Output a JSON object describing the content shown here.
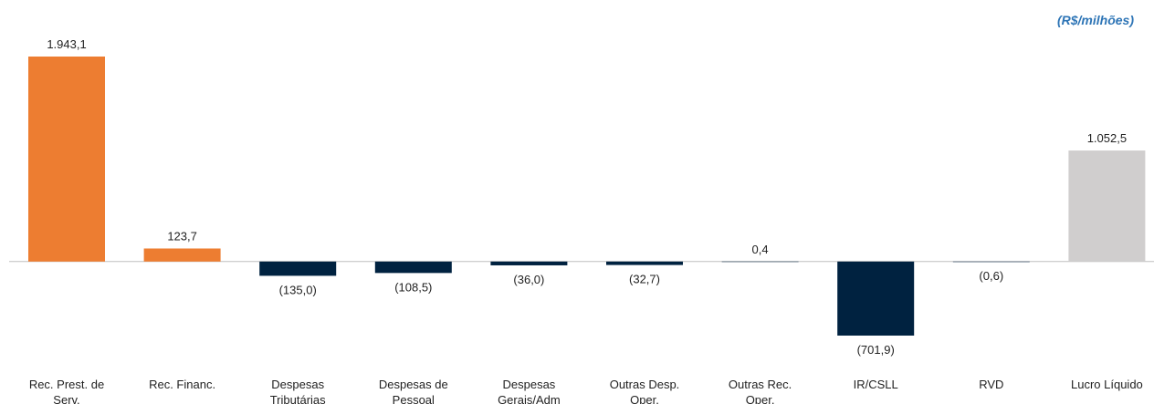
{
  "chart_data": {
    "type": "bar",
    "annotation": "(R$/milhões)",
    "categories": [
      "Rec. Prest. de Serv.",
      "Rec. Financ.",
      "Despesas Tributárias",
      "Despesas de Pessoal",
      "Despesas Gerais/Adm",
      "Outras Desp. Oper.",
      "Outras Rec. Oper.",
      "IR/CSLL",
      "RVD",
      "Lucro Líquido"
    ],
    "values": [
      1943.1,
      123.7,
      -135.0,
      -108.5,
      -36.0,
      -32.7,
      0.4,
      -701.9,
      -0.6,
      1052.5
    ],
    "value_labels": [
      "1.943,1",
      "123,7",
      "(135,0)",
      "(108,5)",
      "(36,0)",
      "(32,7)",
      "0,4",
      "(701,9)",
      "(0,6)",
      "1.052,5"
    ],
    "colors": [
      "#ED7D31",
      "#ED7D31",
      "#002240",
      "#002240",
      "#002240",
      "#002240",
      "#002240",
      "#002240",
      "#002240",
      "#D0CECE"
    ]
  }
}
